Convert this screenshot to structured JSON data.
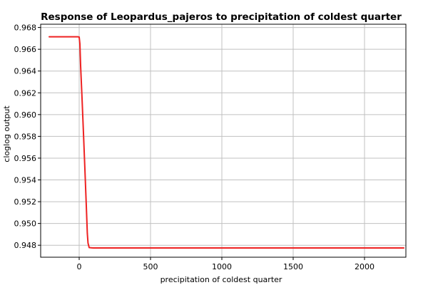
{
  "chart_data": {
    "type": "line",
    "title": "Response of Leopardus_pajeros to precipitation of coldest quarter",
    "xlabel": "precipitation of coldest quarter",
    "ylabel": "cloglog output",
    "xlim": [
      -270,
      2290
    ],
    "ylim": [
      0.9469,
      0.9683
    ],
    "x_ticks": [
      0,
      500,
      1000,
      1500,
      2000
    ],
    "x_tick_labels": [
      "0",
      "500",
      "1000",
      "1500",
      "2000"
    ],
    "y_ticks": [
      0.948,
      0.95,
      0.952,
      0.954,
      0.956,
      0.958,
      0.96,
      0.962,
      0.964,
      0.966,
      0.968
    ],
    "y_tick_labels": [
      "0.948",
      "0.950",
      "0.952",
      "0.954",
      "0.956",
      "0.958",
      "0.960",
      "0.962",
      "0.964",
      "0.966",
      "0.968"
    ],
    "grid": true,
    "series": [
      {
        "color": "#ee2222",
        "x": [
          -210,
          -10,
          0,
          5,
          10,
          20,
          30,
          40,
          50,
          57,
          62,
          70,
          100,
          500,
          1000,
          1500,
          2000,
          2275
        ],
        "y": [
          0.96715,
          0.96715,
          0.96712,
          0.9665,
          0.9645,
          0.9615,
          0.9583,
          0.955,
          0.9516,
          0.9491,
          0.9482,
          0.94778,
          0.94775,
          0.94775,
          0.94775,
          0.94775,
          0.94775,
          0.94775
        ]
      }
    ]
  }
}
